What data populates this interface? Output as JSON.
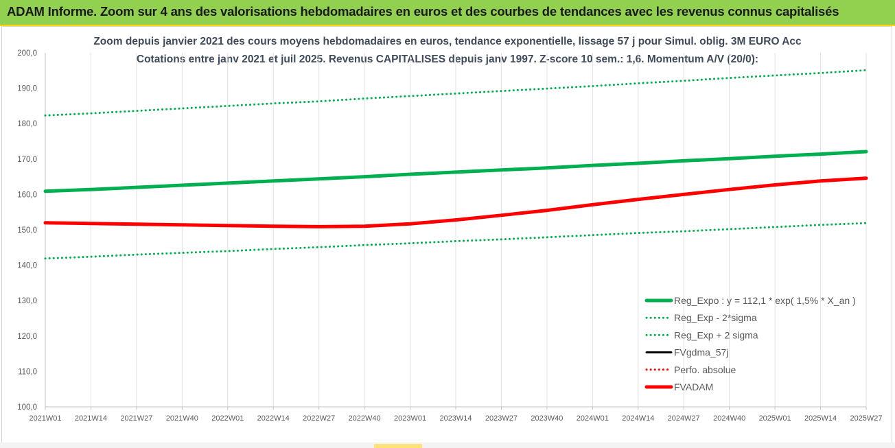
{
  "banner": {
    "title": "ADAM Informe. Zoom sur 4 ans des valorisations hebdomadaires en euros et des courbes de tendances avec les revenus connus capitalisés"
  },
  "colors": {
    "banner_bg": "#92d050",
    "banner_border": "#ffd700",
    "green": "#00b050",
    "red": "#ff0000",
    "black": "#000000",
    "title_text": "#3f4a5a",
    "grid": "#e0e0e0"
  },
  "chart_data": {
    "type": "line",
    "title": "Zoom depuis janvier 2021 des cours moyens hebdomadaires en euros, tendance exponentielle, lissage 57 j pour Simul. oblig. 3M EURO Acc",
    "subtitle": "Cotations entre janv 2021 et juil 2025. Revenus CAPITALISES depuis janv 1997. Z-score 10 sem.: 1,6. Momentum A/V (20/0):",
    "xlabel": "",
    "ylabel": "",
    "ylim": [
      100,
      200
    ],
    "y_ticks": [
      "200,0",
      "190,0",
      "180,0",
      "170,0",
      "160,0",
      "150,0",
      "140,0",
      "130,0",
      "120,0",
      "110,0",
      "100,0"
    ],
    "y_tick_values": [
      200,
      190,
      180,
      170,
      160,
      150,
      140,
      130,
      120,
      110,
      100
    ],
    "x_ticks": [
      "2021W01",
      "2021W14",
      "2021W27",
      "2021W40",
      "2022W01",
      "2022W14",
      "2022W27",
      "2022W40",
      "2023W01",
      "2023W14",
      "2023W27",
      "2023W40",
      "2024W01",
      "2024W14",
      "2024W27",
      "2024W40",
      "2025W01",
      "2025W14",
      "2025W27"
    ],
    "grid": "vertical",
    "legend_position": "bottom-right",
    "series": [
      {
        "name": "Reg_Expo : y = 112,1 * exp( 1,5% *  X_an )",
        "style": "solid-thick",
        "color": "#00b050",
        "values": [
          160.9,
          161.4,
          162.0,
          162.6,
          163.2,
          163.8,
          164.4,
          165.0,
          165.7,
          166.3,
          166.9,
          167.5,
          168.2,
          168.8,
          169.5,
          170.1,
          170.8,
          171.4,
          172.1
        ]
      },
      {
        "name": "Reg_Exp - 2*sigma",
        "style": "dotted",
        "color": "#00b050",
        "values": [
          141.9,
          142.4,
          143.0,
          143.5,
          144.0,
          144.6,
          145.1,
          145.7,
          146.2,
          146.8,
          147.3,
          147.9,
          148.5,
          149.1,
          149.6,
          150.2,
          150.8,
          151.4,
          151.9
        ]
      },
      {
        "name": "Reg_Exp + 2 sigma",
        "style": "dotted",
        "color": "#00b050",
        "values": [
          182.3,
          182.9,
          183.6,
          184.3,
          185.0,
          185.7,
          186.3,
          187.1,
          187.8,
          188.5,
          189.2,
          189.9,
          190.6,
          191.4,
          192.1,
          192.9,
          193.6,
          194.3,
          195.1
        ]
      },
      {
        "name": "FVgdma_57j",
        "style": "solid",
        "color": "#000000",
        "values": []
      },
      {
        "name": "Perfo. absolue",
        "style": "dotted",
        "color": "#ff0000",
        "values": []
      },
      {
        "name": "FVADAM",
        "style": "solid-thick",
        "color": "#ff0000",
        "values": [
          152.0,
          151.8,
          151.6,
          151.4,
          151.2,
          151.0,
          150.9,
          151.0,
          151.7,
          152.8,
          154.1,
          155.5,
          157.1,
          158.6,
          160.0,
          161.4,
          162.7,
          163.8,
          164.6
        ]
      }
    ]
  }
}
